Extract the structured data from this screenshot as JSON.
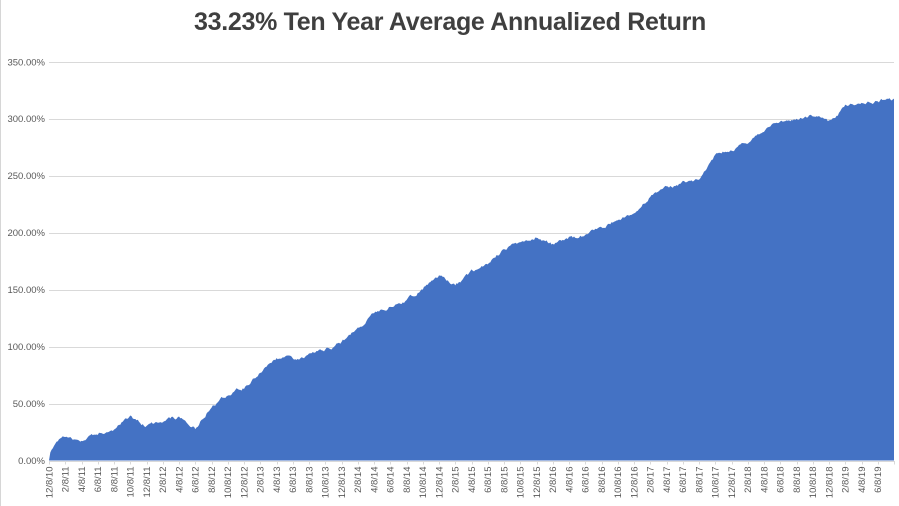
{
  "chart_data": {
    "type": "area",
    "title": "33.23% Ten Year Average Annualized Return",
    "xlabel": "",
    "ylabel": "",
    "grid": true,
    "legend": false,
    "ylim": [
      0,
      350
    ],
    "y_tick_labels": [
      "350.00%",
      "300.00%",
      "250.00%",
      "200.00%",
      "150.00%",
      "100.00%",
      "50.00%",
      "0.00%"
    ],
    "categories": [
      "12/8/10",
      "2/8/11",
      "4/8/11",
      "6/8/11",
      "8/8/11",
      "10/8/11",
      "12/8/11",
      "2/8/12",
      "4/8/12",
      "6/8/12",
      "8/8/12",
      "10/8/12",
      "12/8/12",
      "2/8/13",
      "4/8/13",
      "6/8/13",
      "8/8/13",
      "10/8/13",
      "12/8/13",
      "2/8/14",
      "4/8/14",
      "6/8/14",
      "8/8/14",
      "10/8/14",
      "12/8/14",
      "2/8/15",
      "4/8/15",
      "6/8/15",
      "8/8/15",
      "10/8/15",
      "12/8/15",
      "2/8/16",
      "4/8/16",
      "6/8/16",
      "8/8/16",
      "10/8/16",
      "12/8/16",
      "2/8/17",
      "4/8/17",
      "6/8/17",
      "8/8/17",
      "10/8/17",
      "12/8/17",
      "2/8/18",
      "4/8/18",
      "6/8/18",
      "8/8/18",
      "10/8/18",
      "12/8/18",
      "2/8/19",
      "4/8/19",
      "6/8/19"
    ],
    "values": [
      0,
      21,
      18,
      24,
      27,
      38,
      31,
      35,
      38,
      28,
      48,
      58,
      64,
      77,
      90,
      89,
      93,
      97,
      104,
      117,
      130,
      136,
      141,
      152,
      162,
      153,
      165,
      174,
      186,
      192,
      197,
      190,
      196,
      198,
      205,
      211,
      219,
      232,
      240,
      244,
      247,
      267,
      273,
      281,
      290,
      297,
      301,
      304,
      298,
      311,
      314,
      316
    ],
    "end_value": 318,
    "area_color": "#4472C4",
    "gridline_color": "#D9D9D9",
    "tick_color": "#D9D9D9",
    "axis_label_color": "#595959",
    "title_color": "#3F3F3F"
  }
}
